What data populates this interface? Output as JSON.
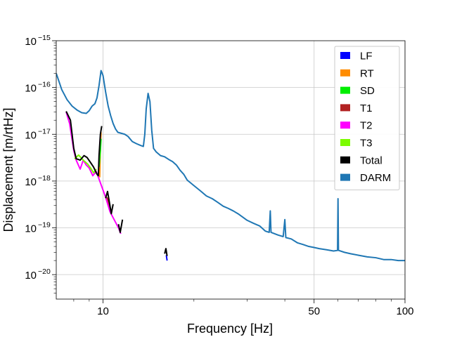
{
  "chart_data": {
    "type": "line",
    "title": "",
    "xlabel": "Frequency [Hz]",
    "ylabel": "Displacement [m/rtHz]",
    "xscale": "log",
    "yscale": "log",
    "xlim": [
      7,
      100
    ],
    "ylim": [
      3e-21,
      1e-15
    ],
    "grid": true,
    "legend_position": "top-right",
    "x_ticks": [
      {
        "value": 10,
        "label": "10"
      },
      {
        "value": 50,
        "label": "50"
      },
      {
        "value": 100,
        "label": "100"
      }
    ],
    "y_ticks": [
      {
        "value": 1e-20,
        "base": "10",
        "exp": "−20"
      },
      {
        "value": 1e-19,
        "base": "10",
        "exp": "−19"
      },
      {
        "value": 1e-18,
        "base": "10",
        "exp": "−18"
      },
      {
        "value": 1e-17,
        "base": "10",
        "exp": "−17"
      },
      {
        "value": 1e-16,
        "base": "10",
        "exp": "−16"
      },
      {
        "value": 1e-15,
        "base": "10",
        "exp": "−15"
      }
    ],
    "series": [
      {
        "name": "LF",
        "color": "#0000ff",
        "points": [
          [
            16.2,
            2.6e-20
          ],
          [
            16.3,
            2e-20
          ]
        ]
      },
      {
        "name": "RT",
        "color": "#ff8c00",
        "points": [
          [
            9.75,
            1.2e-18
          ],
          [
            9.8,
            5e-18
          ],
          [
            9.85,
            1.1e-17
          ]
        ]
      },
      {
        "name": "SD",
        "color": "#00ee00",
        "points": [
          [
            9.7,
            2e-18
          ],
          [
            9.8,
            4.5e-18
          ],
          [
            9.85,
            8e-18
          ]
        ]
      },
      {
        "name": "T1",
        "color": "#b22222",
        "points": [
          [
            10.3,
            4.5e-19
          ],
          [
            10.6,
            2.5e-19
          ]
        ]
      },
      {
        "name": "T2",
        "color": "#ff00ff",
        "points": [
          [
            7.55,
            3e-17
          ],
          [
            7.75,
            1.7e-17
          ],
          [
            8.0,
            4.5e-18
          ],
          [
            8.15,
            2.8e-18
          ],
          [
            8.4,
            1.8e-18
          ],
          [
            8.6,
            2.8e-18
          ],
          [
            8.8,
            2.2e-18
          ],
          [
            9.0,
            1.9e-18
          ],
          [
            9.25,
            1.3e-18
          ],
          [
            9.5,
            1.6e-18
          ],
          [
            10.2,
            4.5e-19
          ],
          [
            10.55,
            2.2e-19
          ],
          [
            11.25,
            1e-19
          ],
          [
            11.45,
            7.5e-20
          ]
        ]
      },
      {
        "name": "T3",
        "color": "#7cfc00",
        "points": [
          [
            8.05,
            3e-18
          ],
          [
            8.3,
            3.6e-18
          ],
          [
            8.6,
            2.8e-18
          ],
          [
            8.9,
            2.3e-18
          ],
          [
            9.1,
            1.9e-18
          ],
          [
            9.3,
            1.5e-18
          ],
          [
            9.5,
            1.8e-18
          ]
        ]
      },
      {
        "name": "Total",
        "color": "#000000",
        "points": [
          {
            "seg": [
              [
                7.55,
                3.1e-17
              ],
              [
                7.8,
                2e-17
              ],
              [
                8.0,
                5e-18
              ],
              [
                8.15,
                3e-18
              ],
              [
                8.4,
                2.8e-18
              ],
              [
                8.65,
                3.5e-18
              ],
              [
                8.85,
                3.2e-18
              ],
              [
                9.05,
                2.6e-18
              ],
              [
                9.3,
                2e-18
              ],
              [
                9.55,
                1.4e-18
              ],
              [
                9.65,
                1.3e-18
              ],
              [
                9.7,
                3.5e-18
              ],
              [
                9.8,
                1e-17
              ],
              [
                9.9,
                1.5e-17
              ]
            ]
          },
          {
            "seg": [
              [
                10.2,
                4.3e-19
              ],
              [
                10.35,
                6e-19
              ],
              [
                10.5,
                3.5e-19
              ],
              [
                10.65,
                2e-19
              ],
              [
                10.8,
                3.2e-19
              ]
            ]
          },
          {
            "seg": [
              [
                11.25,
                1.2e-19
              ],
              [
                11.4,
                8e-20
              ],
              [
                11.6,
                1.5e-19
              ]
            ]
          },
          {
            "seg": [
              [
                16.0,
                2.8e-20
              ],
              [
                16.15,
                3.6e-20
              ],
              [
                16.3,
                2.5e-20
              ]
            ]
          }
        ]
      },
      {
        "name": "DARM",
        "color": "#1f77b4",
        "points": [
          [
            7.0,
            2e-16
          ],
          [
            7.3,
            9e-17
          ],
          [
            7.6,
            5.5e-17
          ],
          [
            7.9,
            4e-17
          ],
          [
            8.2,
            3.3e-17
          ],
          [
            8.5,
            2.9e-17
          ],
          [
            8.8,
            2.8e-17
          ],
          [
            9.0,
            3.2e-17
          ],
          [
            9.2,
            4e-17
          ],
          [
            9.4,
            4.5e-17
          ],
          [
            9.55,
            6e-17
          ],
          [
            9.7,
            1.1e-16
          ],
          [
            9.85,
            2.3e-16
          ],
          [
            10.0,
            1.8e-16
          ],
          [
            10.2,
            8e-17
          ],
          [
            10.4,
            4e-17
          ],
          [
            10.6,
            2.5e-17
          ],
          [
            10.8,
            1.7e-17
          ],
          [
            11.0,
            1.3e-17
          ],
          [
            11.2,
            1.1e-17
          ],
          [
            11.5,
            1.05e-17
          ],
          [
            11.8,
            1e-17
          ],
          [
            12.1,
            9e-18
          ],
          [
            12.5,
            7e-18
          ],
          [
            12.9,
            6.3e-18
          ],
          [
            13.3,
            5.8e-18
          ],
          [
            13.6,
            5.5e-18
          ],
          [
            13.75,
            1e-17
          ],
          [
            13.9,
            3.5e-17
          ],
          [
            14.1,
            7.5e-17
          ],
          [
            14.3,
            5e-17
          ],
          [
            14.5,
            1.2e-17
          ],
          [
            14.7,
            5e-18
          ],
          [
            15.0,
            4.2e-18
          ],
          [
            15.5,
            3.5e-18
          ],
          [
            16.0,
            3.3e-18
          ],
          [
            16.5,
            2.9e-18
          ],
          [
            17.0,
            2.6e-18
          ],
          [
            17.5,
            2.2e-18
          ],
          [
            18.0,
            1.7e-18
          ],
          [
            18.5,
            1.4e-18
          ],
          [
            19.0,
            1.05e-18
          ],
          [
            20.0,
            8e-19
          ],
          [
            21.0,
            6.2e-19
          ],
          [
            22.0,
            4.8e-19
          ],
          [
            23.0,
            4.2e-19
          ],
          [
            24.0,
            3.5e-19
          ],
          [
            25.0,
            2.9e-19
          ],
          [
            26.0,
            2.6e-19
          ],
          [
            27.0,
            2.3e-19
          ],
          [
            28.0,
            2e-19
          ],
          [
            29.0,
            1.7e-19
          ],
          [
            30.0,
            1.45e-19
          ],
          [
            31.5,
            1.25e-19
          ],
          [
            33.0,
            1.1e-19
          ],
          [
            34.5,
            8.5e-20
          ],
          [
            35.5,
            8e-20
          ],
          [
            35.8,
            2.3e-19
          ],
          [
            36.0,
            8e-20
          ],
          [
            38.0,
            7e-20
          ],
          [
            39.5,
            6.5e-20
          ],
          [
            40.0,
            1.5e-19
          ],
          [
            40.3,
            6.2e-20
          ],
          [
            42.0,
            5.8e-20
          ],
          [
            44.0,
            4.8e-20
          ],
          [
            46.0,
            4.4e-20
          ],
          [
            48.0,
            4e-20
          ],
          [
            50.0,
            3.8e-20
          ],
          [
            52.0,
            3.6e-20
          ],
          [
            55.0,
            3.4e-20
          ],
          [
            58.0,
            3.2e-20
          ],
          [
            59.8,
            3.3e-20
          ],
          [
            60.0,
            4.2e-19
          ],
          [
            60.2,
            3.3e-20
          ],
          [
            63.0,
            3e-20
          ],
          [
            66.0,
            2.8e-20
          ],
          [
            70.0,
            2.6e-20
          ],
          [
            75.0,
            2.4e-20
          ],
          [
            80.0,
            2.3e-20
          ],
          [
            85.0,
            2.1e-20
          ],
          [
            90.0,
            2.1e-20
          ],
          [
            95.0,
            2e-20
          ],
          [
            100.0,
            2e-20
          ]
        ]
      }
    ]
  }
}
